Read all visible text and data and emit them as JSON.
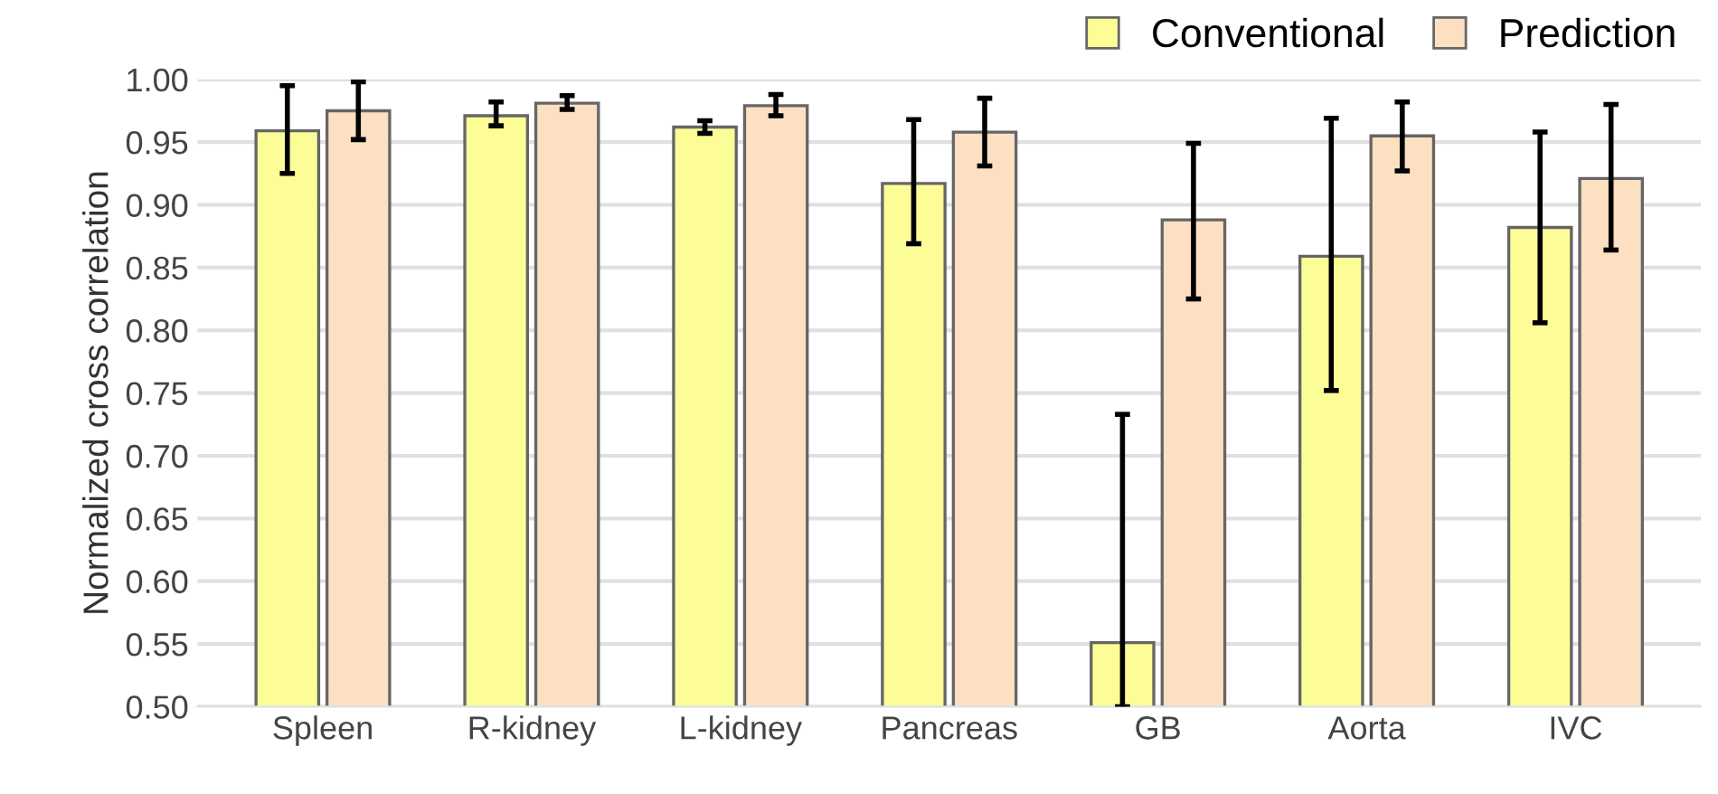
{
  "chart_data": {
    "type": "bar",
    "ylabel": "Normalized cross correlation",
    "categories": [
      "Spleen",
      "R-kidney",
      "L-kidney",
      "Pancreas",
      "GB",
      "Aorta",
      "IVC"
    ],
    "series": [
      {
        "name": "Conventional",
        "color": "#fdfd98",
        "values": [
          0.959,
          0.971,
          0.962,
          0.917,
          0.551,
          0.859,
          0.882
        ],
        "errors": [
          [
            0.925,
            0.995
          ],
          [
            0.963,
            0.982
          ],
          [
            0.957,
            0.967
          ],
          [
            0.869,
            0.968
          ],
          [
            0.5,
            0.733
          ],
          [
            0.752,
            0.969
          ],
          [
            0.806,
            0.958
          ]
        ]
      },
      {
        "name": "Prediction",
        "color": "#fde0c2",
        "values": [
          0.975,
          0.981,
          0.979,
          0.958,
          0.888,
          0.955,
          0.921
        ],
        "errors": [
          [
            0.952,
            0.998
          ],
          [
            0.976,
            0.987
          ],
          [
            0.971,
            0.988
          ],
          [
            0.931,
            0.985
          ],
          [
            0.825,
            0.949
          ],
          [
            0.927,
            0.982
          ],
          [
            0.864,
            0.98
          ]
        ]
      }
    ],
    "ylim": [
      0.5,
      1.0
    ],
    "yticks": [
      {
        "value": 0.5,
        "label": "0.50"
      },
      {
        "value": 0.55,
        "label": "0.55"
      },
      {
        "value": 0.6,
        "label": "0.60"
      },
      {
        "value": 0.65,
        "label": "0.65"
      },
      {
        "value": 0.7,
        "label": "0.70"
      },
      {
        "value": 0.75,
        "label": "0.75"
      },
      {
        "value": 0.8,
        "label": "0.80"
      },
      {
        "value": 0.85,
        "label": "0.85"
      },
      {
        "value": 0.9,
        "label": "0.90"
      },
      {
        "value": 0.95,
        "label": "0.95"
      },
      {
        "value": 1.0,
        "label": "1.00"
      }
    ],
    "grid": "y",
    "legend": "top right"
  }
}
